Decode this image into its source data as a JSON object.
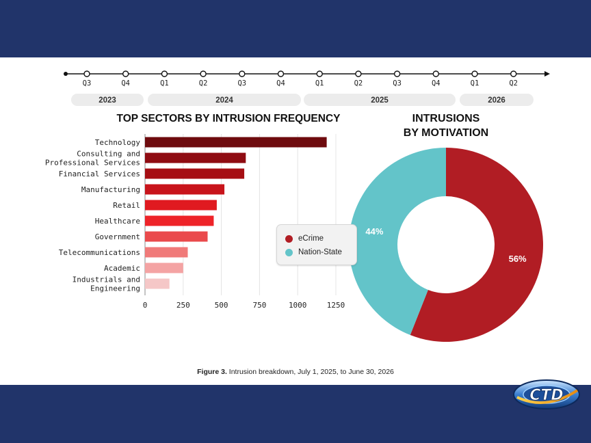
{
  "timeline": {
    "quarters": [
      "Q3",
      "Q4",
      "Q1",
      "Q2",
      "Q3",
      "Q4",
      "Q1",
      "Q2",
      "Q3",
      "Q4",
      "Q1",
      "Q2"
    ],
    "years": [
      "2023",
      "2024",
      "2025",
      "2026"
    ]
  },
  "caption": {
    "bold": "Figure 3.",
    "text": " Intrusion breakdown, July 1, 2025, to June 30, 2026"
  },
  "logo": {
    "text": "CTD"
  },
  "colors": {
    "band": "#21346a",
    "ecrime": "#b11d24",
    "nation_state": "#63c4c9"
  },
  "chart_data": [
    {
      "type": "bar",
      "orientation": "horizontal",
      "title": "TOP SECTORS BY INTRUSION FREQUENCY",
      "categories": [
        "Technology",
        [
          "Consulting and",
          "Professional Services"
        ],
        "Financial Services",
        "Manufacturing",
        "Retail",
        "Healthcare",
        "Government",
        "Telecommunications",
        "Academic",
        [
          "Industrials and",
          "Engineering"
        ]
      ],
      "values": [
        1190,
        660,
        650,
        520,
        470,
        450,
        410,
        280,
        250,
        160
      ],
      "bar_colors": [
        "#6e0b0e",
        "#8f0c12",
        "#a60e13",
        "#c8141b",
        "#e01a20",
        "#ee2328",
        "#ea4a4c",
        "#f07a79",
        "#f4a3a3",
        "#f5c7c7"
      ],
      "xticks": [
        "0",
        "250",
        "500",
        "750",
        "1000",
        "1250"
      ],
      "xlim": [
        0,
        1250
      ],
      "grid": "vertical"
    },
    {
      "type": "pie",
      "donut": true,
      "title": [
        "INTRUSIONS",
        "BY MOTIVATION"
      ],
      "labels": [
        "eCrime",
        "Nation-State"
      ],
      "values": [
        56,
        44
      ],
      "value_labels": [
        "56%",
        "44%"
      ],
      "colors": [
        "#b11d24",
        "#63c4c9"
      ],
      "legend": "left"
    }
  ]
}
